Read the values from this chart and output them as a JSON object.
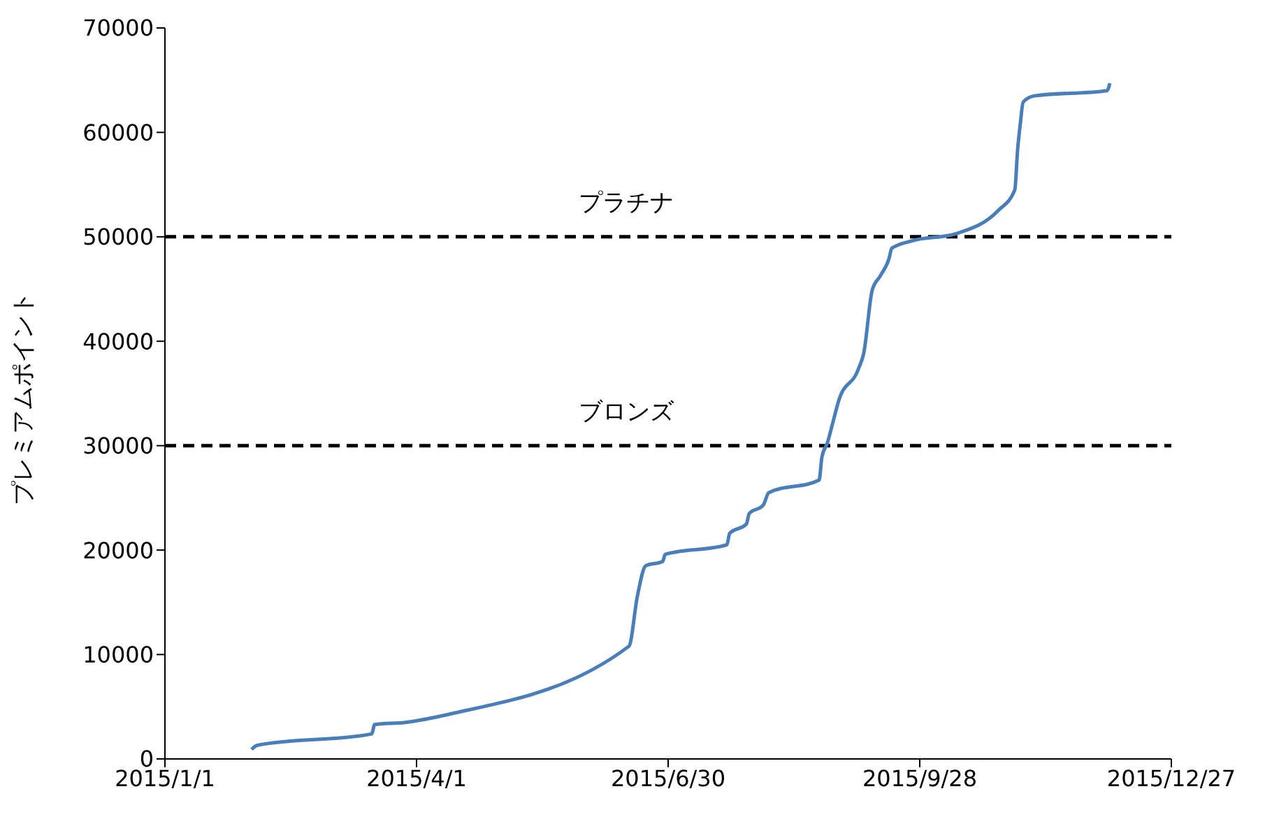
{
  "chart_data": {
    "type": "line",
    "ylabel": "プレミアムポイント",
    "series": [
      {
        "color": "#4a7ebb",
        "x": [
          "2015-02-01",
          "2015-02-03",
          "2015-03-16",
          "2015-03-17",
          "2015-03-28",
          "2015-04-13",
          "2015-06-16",
          "2015-06-19",
          "2015-06-22",
          "2015-06-28",
          "2015-06-29",
          "2015-07-21",
          "2015-07-22",
          "2015-07-28",
          "2015-07-29",
          "2015-08-03",
          "2015-08-05",
          "2015-08-23",
          "2015-08-24",
          "2015-08-26",
          "2015-08-28",
          "2015-08-30",
          "2015-09-06",
          "2015-09-08",
          "2015-09-11",
          "2015-09-14",
          "2015-09-17",
          "2015-09-18",
          "2015-09-25",
          "2015-10-11",
          "2015-10-26",
          "2015-11-01",
          "2015-11-02",
          "2015-11-03",
          "2015-11-04",
          "2015-11-08",
          "2015-12-04",
          "2015-12-05"
        ],
        "values": [
          900,
          1300,
          2400,
          3300,
          3500,
          4300,
          10800,
          15600,
          18500,
          18900,
          19600,
          20500,
          21600,
          22500,
          23500,
          24300,
          25500,
          26700,
          28900,
          30300,
          32300,
          34300,
          37300,
          38900,
          44900,
          46300,
          47900,
          48900,
          49600,
          50300,
          52500,
          54500,
          58300,
          60900,
          62900,
          63500,
          64000,
          64700
        ]
      }
    ],
    "xlim": [
      "2015-01-01",
      "2015-12-27"
    ],
    "xticks": [
      {
        "value": "2015-01-01",
        "label": "2015/1/1"
      },
      {
        "value": "2015-04-01",
        "label": "2015/4/1"
      },
      {
        "value": "2015-06-30",
        "label": "2015/6/30"
      },
      {
        "value": "2015-09-28",
        "label": "2015/9/28"
      },
      {
        "value": "2015-12-27",
        "label": "2015/12/27"
      }
    ],
    "ylim": [
      0,
      70000
    ],
    "yticks": [
      0,
      10000,
      20000,
      30000,
      40000,
      50000,
      60000,
      70000
    ],
    "ref_lines": [
      {
        "axis": "y",
        "value": 50000,
        "label": "プラチナ",
        "color": "#000000",
        "line_style": "dashed"
      },
      {
        "axis": "y",
        "value": 30000,
        "label": "ブロンズ",
        "color": "#000000",
        "line_style": "dashed"
      }
    ],
    "grid": false,
    "legend": false,
    "marker": "none",
    "line_style": "solid"
  }
}
